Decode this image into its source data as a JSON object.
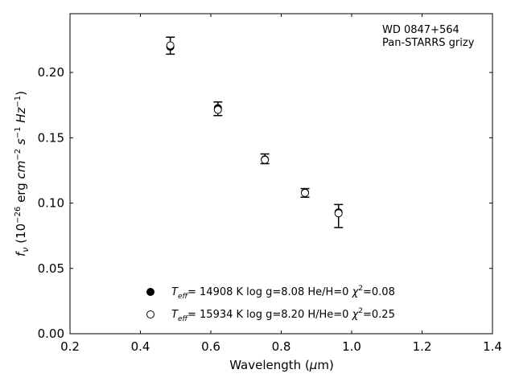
{
  "chart_data": {
    "type": "scatter",
    "annotations": [
      "WD 0847+564",
      "Pan-STARRS grizy"
    ],
    "xlabel": {
      "main": "Wavelength (",
      "mu": "μ",
      "unit": "m)"
    },
    "ylabel": {
      "f": "f",
      "nu": "ν",
      "a": " (10",
      "e26": "−26",
      "b": " erg ",
      "cm": "cm",
      "e2": "−2",
      "s": " s",
      "e1": "−1",
      "hz": " Hz",
      "e1b": "−1",
      "close": ")"
    },
    "xlim": [
      0.2,
      1.4
    ],
    "ylim": [
      0.0,
      0.245
    ],
    "xticks": [
      0.2,
      0.4,
      0.6,
      0.8,
      1.0,
      1.2,
      1.4
    ],
    "xtick_labels": [
      "0.2",
      "0.4",
      "0.6",
      "0.8",
      "1.0",
      "1.2",
      "1.4"
    ],
    "yticks": [
      0.0,
      0.05,
      0.1,
      0.15,
      0.2
    ],
    "ytick_labels": [
      "0.00",
      "0.05",
      "0.10",
      "0.15",
      "0.20"
    ],
    "grid": false,
    "observed": {
      "x": [
        0.4849,
        0.6201,
        0.7535,
        0.8674,
        0.9628
      ],
      "y": [
        0.2205,
        0.1722,
        0.1339,
        0.1078,
        0.0901
      ],
      "yerr": [
        0.0065,
        0.0052,
        0.0037,
        0.0033,
        0.0088
      ]
    },
    "series": [
      {
        "marker": "filled",
        "x": [
          0.4849,
          0.6201,
          0.7535,
          0.8674,
          0.9628
        ],
        "y": [
          0.2197,
          0.1727,
          0.1334,
          0.1082,
          0.0929
        ],
        "legend": {
          "teff_t": "T",
          "teff_sub": "eff",
          "rest": "= 14908 K  log g=8.08  He/H=0  ",
          "chi": "χ",
          "chi_sup": "2",
          "chi_val": "=0.08"
        }
      },
      {
        "marker": "open",
        "x": [
          0.4849,
          0.6201,
          0.7535,
          0.8674,
          0.9628
        ],
        "y": [
          0.2207,
          0.1714,
          0.1331,
          0.1078,
          0.0922
        ],
        "legend": {
          "teff_t": "T",
          "teff_sub": "eff",
          "rest": "= 15934 K  log g=8.20  H/He=0  ",
          "chi": "χ",
          "chi_sup": "2",
          "chi_val": "=0.25"
        }
      }
    ],
    "legend_position": "lower-center"
  }
}
